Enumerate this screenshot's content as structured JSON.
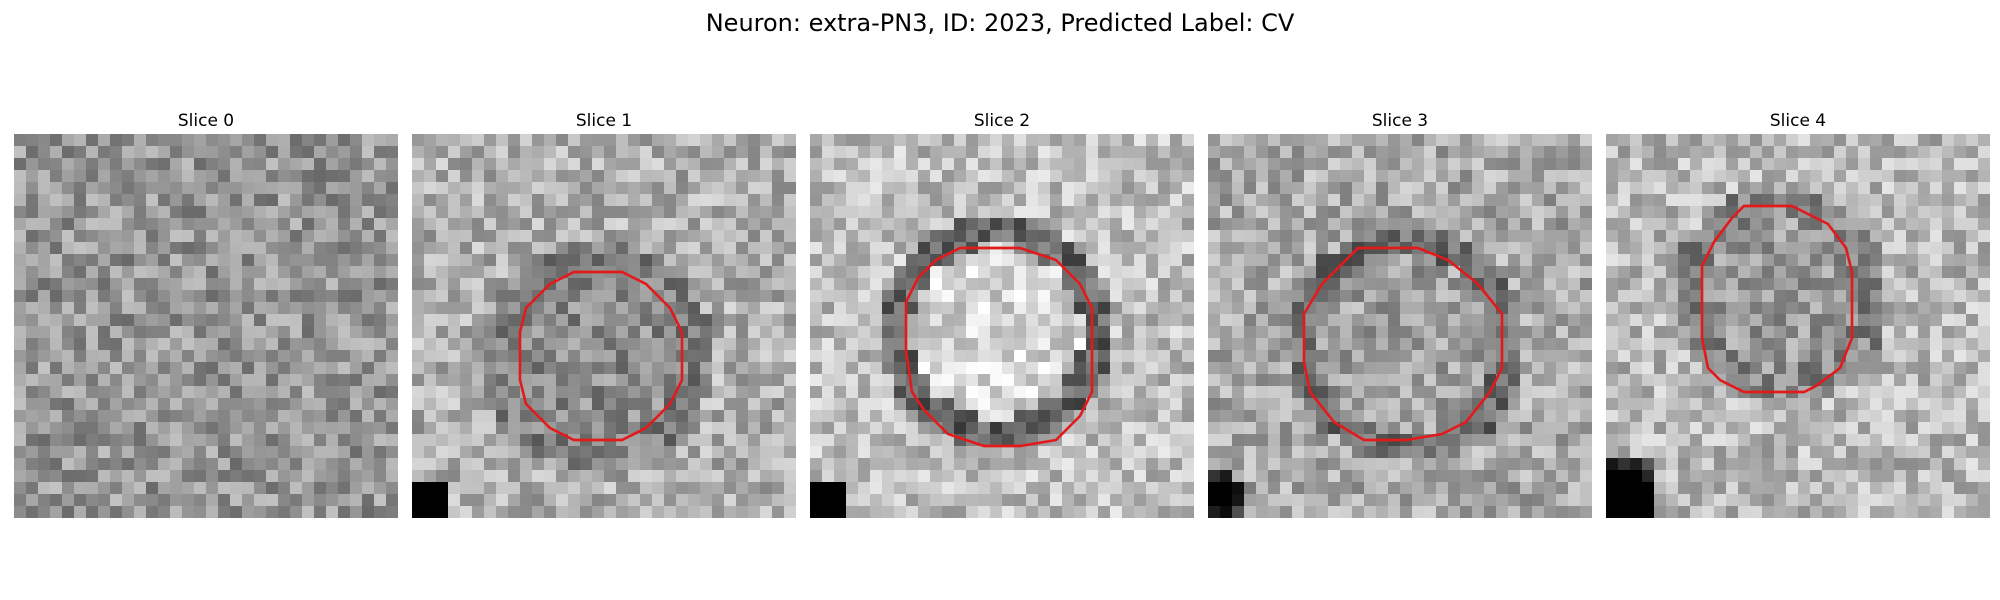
{
  "figure": {
    "title": "Neuron: extra-PN3, ID: 2023, Predicted Label: CV",
    "contour_color": "#e31a1c"
  },
  "slices": [
    {
      "title": "Slice 0",
      "has_contour": false
    },
    {
      "title": "Slice 1",
      "has_contour": true
    },
    {
      "title": "Slice 2",
      "has_contour": true
    },
    {
      "title": "Slice 3",
      "has_contour": true
    },
    {
      "title": "Slice 4",
      "has_contour": true
    }
  ]
}
